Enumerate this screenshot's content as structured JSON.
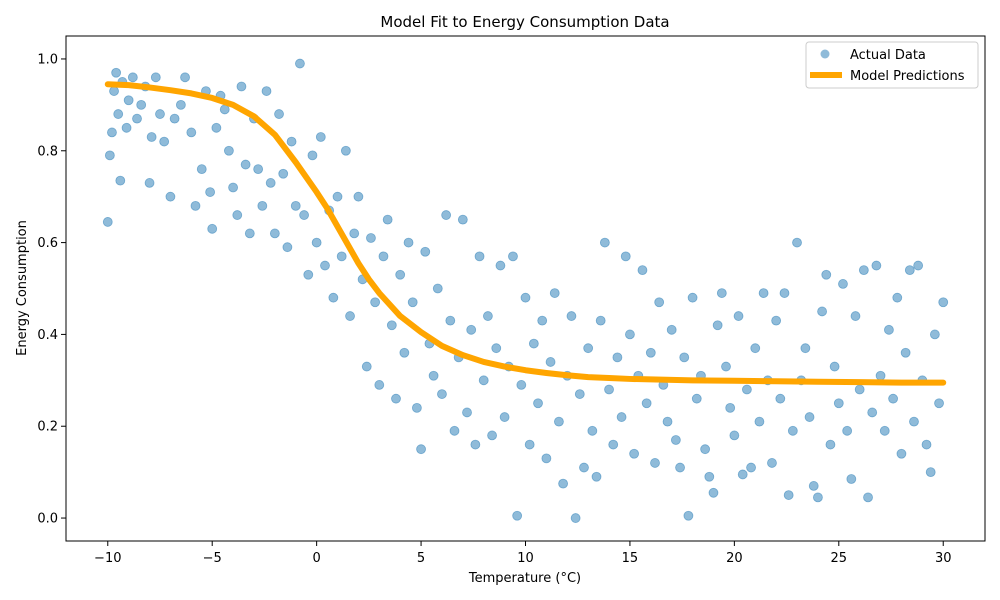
{
  "chart_data": {
    "type": "scatter",
    "title": "Model Fit to Energy Consumption Data",
    "xlabel": "Temperature (°C)",
    "ylabel": "Energy Consumption",
    "xlim": [
      -12,
      32
    ],
    "ylim": [
      -0.05,
      1.05
    ],
    "xticks": [
      -10,
      -5,
      0,
      5,
      10,
      15,
      20,
      25,
      30
    ],
    "yticks": [
      0.0,
      0.2,
      0.4,
      0.6,
      0.8,
      1.0
    ],
    "xtick_labels": [
      "−10",
      "−5",
      "0",
      "5",
      "10",
      "15",
      "20",
      "25",
      "30"
    ],
    "ytick_labels": [
      "0.0",
      "0.2",
      "0.4",
      "0.6",
      "0.8",
      "1.0"
    ],
    "grid": false,
    "legend_position": "top-right",
    "series": [
      {
        "name": "Actual Data",
        "kind": "scatter",
        "color": "#1f77b4",
        "points": [
          [
            -10.0,
            0.645
          ],
          [
            -9.9,
            0.79
          ],
          [
            -9.8,
            0.84
          ],
          [
            -9.7,
            0.93
          ],
          [
            -9.6,
            0.97
          ],
          [
            -9.5,
            0.88
          ],
          [
            -9.4,
            0.735
          ],
          [
            -9.3,
            0.95
          ],
          [
            -9.1,
            0.85
          ],
          [
            -9.0,
            0.91
          ],
          [
            -8.8,
            0.96
          ],
          [
            -8.6,
            0.87
          ],
          [
            -8.4,
            0.9
          ],
          [
            -8.2,
            0.94
          ],
          [
            -8.0,
            0.73
          ],
          [
            -7.9,
            0.83
          ],
          [
            -7.7,
            0.96
          ],
          [
            -7.5,
            0.88
          ],
          [
            -7.3,
            0.82
          ],
          [
            -7.0,
            0.7
          ],
          [
            -6.8,
            0.87
          ],
          [
            -6.5,
            0.9
          ],
          [
            -6.3,
            0.96
          ],
          [
            -6.0,
            0.84
          ],
          [
            -5.8,
            0.68
          ],
          [
            -5.5,
            0.76
          ],
          [
            -5.3,
            0.93
          ],
          [
            -5.1,
            0.71
          ],
          [
            -5.0,
            0.63
          ],
          [
            -4.8,
            0.85
          ],
          [
            -4.6,
            0.92
          ],
          [
            -4.4,
            0.89
          ],
          [
            -4.2,
            0.8
          ],
          [
            -4.0,
            0.72
          ],
          [
            -3.8,
            0.66
          ],
          [
            -3.6,
            0.94
          ],
          [
            -3.4,
            0.77
          ],
          [
            -3.2,
            0.62
          ],
          [
            -3.0,
            0.87
          ],
          [
            -2.8,
            0.76
          ],
          [
            -2.6,
            0.68
          ],
          [
            -2.4,
            0.93
          ],
          [
            -2.2,
            0.73
          ],
          [
            -2.0,
            0.62
          ],
          [
            -1.8,
            0.88
          ],
          [
            -1.6,
            0.75
          ],
          [
            -1.4,
            0.59
          ],
          [
            -1.2,
            0.82
          ],
          [
            -1.0,
            0.68
          ],
          [
            -0.8,
            0.99
          ],
          [
            -0.6,
            0.66
          ],
          [
            -0.4,
            0.53
          ],
          [
            -0.2,
            0.79
          ],
          [
            0.0,
            0.6
          ],
          [
            0.2,
            0.83
          ],
          [
            0.4,
            0.55
          ],
          [
            0.6,
            0.67
          ],
          [
            0.8,
            0.48
          ],
          [
            1.0,
            0.7
          ],
          [
            1.2,
            0.57
          ],
          [
            1.4,
            0.8
          ],
          [
            1.6,
            0.44
          ],
          [
            1.8,
            0.62
          ],
          [
            2.0,
            0.7
          ],
          [
            2.2,
            0.52
          ],
          [
            2.4,
            0.33
          ],
          [
            2.6,
            0.61
          ],
          [
            2.8,
            0.47
          ],
          [
            3.0,
            0.29
          ],
          [
            3.2,
            0.57
          ],
          [
            3.4,
            0.65
          ],
          [
            3.6,
            0.42
          ],
          [
            3.8,
            0.26
          ],
          [
            4.0,
            0.53
          ],
          [
            4.2,
            0.36
          ],
          [
            4.4,
            0.6
          ],
          [
            4.6,
            0.47
          ],
          [
            4.8,
            0.24
          ],
          [
            5.0,
            0.15
          ],
          [
            5.2,
            0.58
          ],
          [
            5.4,
            0.38
          ],
          [
            5.6,
            0.31
          ],
          [
            5.8,
            0.5
          ],
          [
            6.0,
            0.27
          ],
          [
            6.2,
            0.66
          ],
          [
            6.4,
            0.43
          ],
          [
            6.6,
            0.19
          ],
          [
            6.8,
            0.35
          ],
          [
            7.0,
            0.65
          ],
          [
            7.2,
            0.23
          ],
          [
            7.4,
            0.41
          ],
          [
            7.6,
            0.16
          ],
          [
            7.8,
            0.57
          ],
          [
            8.0,
            0.3
          ],
          [
            8.2,
            0.44
          ],
          [
            8.4,
            0.18
          ],
          [
            8.6,
            0.37
          ],
          [
            8.8,
            0.55
          ],
          [
            9.0,
            0.22
          ],
          [
            9.2,
            0.33
          ],
          [
            9.4,
            0.57
          ],
          [
            9.6,
            0.005
          ],
          [
            9.8,
            0.29
          ],
          [
            10.0,
            0.48
          ],
          [
            10.2,
            0.16
          ],
          [
            10.4,
            0.38
          ],
          [
            10.6,
            0.25
          ],
          [
            10.8,
            0.43
          ],
          [
            11.0,
            0.13
          ],
          [
            11.2,
            0.34
          ],
          [
            11.4,
            0.49
          ],
          [
            11.6,
            0.21
          ],
          [
            11.8,
            0.075
          ],
          [
            12.0,
            0.31
          ],
          [
            12.2,
            0.44
          ],
          [
            12.4,
            0.0
          ],
          [
            12.6,
            0.27
          ],
          [
            12.8,
            0.11
          ],
          [
            13.0,
            0.37
          ],
          [
            13.2,
            0.19
          ],
          [
            13.4,
            0.09
          ],
          [
            13.6,
            0.43
          ],
          [
            13.8,
            0.6
          ],
          [
            14.0,
            0.28
          ],
          [
            14.2,
            0.16
          ],
          [
            14.4,
            0.35
          ],
          [
            14.6,
            0.22
          ],
          [
            14.8,
            0.57
          ],
          [
            15.0,
            0.4
          ],
          [
            15.2,
            0.14
          ],
          [
            15.4,
            0.31
          ],
          [
            15.6,
            0.54
          ],
          [
            15.8,
            0.25
          ],
          [
            16.0,
            0.36
          ],
          [
            16.2,
            0.12
          ],
          [
            16.4,
            0.47
          ],
          [
            16.6,
            0.29
          ],
          [
            16.8,
            0.21
          ],
          [
            17.0,
            0.41
          ],
          [
            17.2,
            0.17
          ],
          [
            17.4,
            0.11
          ],
          [
            17.6,
            0.35
          ],
          [
            17.8,
            0.005
          ],
          [
            18.0,
            0.48
          ],
          [
            18.2,
            0.26
          ],
          [
            18.4,
            0.31
          ],
          [
            18.6,
            0.15
          ],
          [
            18.8,
            0.09
          ],
          [
            19.0,
            0.055
          ],
          [
            19.2,
            0.42
          ],
          [
            19.4,
            0.49
          ],
          [
            19.6,
            0.33
          ],
          [
            19.8,
            0.24
          ],
          [
            20.0,
            0.18
          ],
          [
            20.2,
            0.44
          ],
          [
            20.4,
            0.095
          ],
          [
            20.6,
            0.28
          ],
          [
            20.8,
            0.11
          ],
          [
            21.0,
            0.37
          ],
          [
            21.2,
            0.21
          ],
          [
            21.4,
            0.49
          ],
          [
            21.6,
            0.3
          ],
          [
            21.8,
            0.12
          ],
          [
            22.0,
            0.43
          ],
          [
            22.2,
            0.26
          ],
          [
            22.4,
            0.49
          ],
          [
            22.6,
            0.05
          ],
          [
            22.8,
            0.19
          ],
          [
            23.0,
            0.6
          ],
          [
            23.2,
            0.3
          ],
          [
            23.4,
            0.37
          ],
          [
            23.6,
            0.22
          ],
          [
            23.8,
            0.07
          ],
          [
            24.0,
            0.045
          ],
          [
            24.2,
            0.45
          ],
          [
            24.4,
            0.53
          ],
          [
            24.6,
            0.16
          ],
          [
            24.8,
            0.33
          ],
          [
            25.0,
            0.25
          ],
          [
            25.2,
            0.51
          ],
          [
            25.4,
            0.19
          ],
          [
            25.6,
            0.085
          ],
          [
            25.8,
            0.44
          ],
          [
            26.0,
            0.28
          ],
          [
            26.2,
            0.54
          ],
          [
            26.4,
            0.045
          ],
          [
            26.6,
            0.23
          ],
          [
            26.8,
            0.55
          ],
          [
            27.0,
            0.31
          ],
          [
            27.2,
            0.19
          ],
          [
            27.4,
            0.41
          ],
          [
            27.6,
            0.26
          ],
          [
            27.8,
            0.48
          ],
          [
            28.0,
            0.14
          ],
          [
            28.2,
            0.36
          ],
          [
            28.4,
            0.54
          ],
          [
            28.6,
            0.21
          ],
          [
            28.8,
            0.55
          ],
          [
            29.0,
            0.3
          ],
          [
            29.2,
            0.16
          ],
          [
            29.4,
            0.1
          ],
          [
            29.6,
            0.4
          ],
          [
            29.8,
            0.25
          ],
          [
            30.0,
            0.47
          ]
        ]
      },
      {
        "name": "Model Predictions",
        "kind": "line",
        "color": "#ffa500",
        "points": [
          [
            -10,
            0.945
          ],
          [
            -9,
            0.943
          ],
          [
            -8,
            0.938
          ],
          [
            -7,
            0.932
          ],
          [
            -6,
            0.925
          ],
          [
            -5,
            0.915
          ],
          [
            -4,
            0.9
          ],
          [
            -3,
            0.875
          ],
          [
            -2,
            0.835
          ],
          [
            -1,
            0.775
          ],
          [
            0,
            0.71
          ],
          [
            0.5,
            0.675
          ],
          [
            1,
            0.635
          ],
          [
            1.5,
            0.595
          ],
          [
            2,
            0.555
          ],
          [
            2.5,
            0.52
          ],
          [
            3,
            0.49
          ],
          [
            4,
            0.44
          ],
          [
            5,
            0.405
          ],
          [
            6,
            0.375
          ],
          [
            7,
            0.355
          ],
          [
            8,
            0.34
          ],
          [
            9,
            0.33
          ],
          [
            10,
            0.322
          ],
          [
            11,
            0.316
          ],
          [
            12,
            0.311
          ],
          [
            13,
            0.307
          ],
          [
            14,
            0.305
          ],
          [
            15,
            0.303
          ],
          [
            16,
            0.302
          ],
          [
            18,
            0.3
          ],
          [
            20,
            0.299
          ],
          [
            22,
            0.298
          ],
          [
            24,
            0.297
          ],
          [
            26,
            0.296
          ],
          [
            28,
            0.295
          ],
          [
            30,
            0.295
          ]
        ]
      }
    ]
  }
}
